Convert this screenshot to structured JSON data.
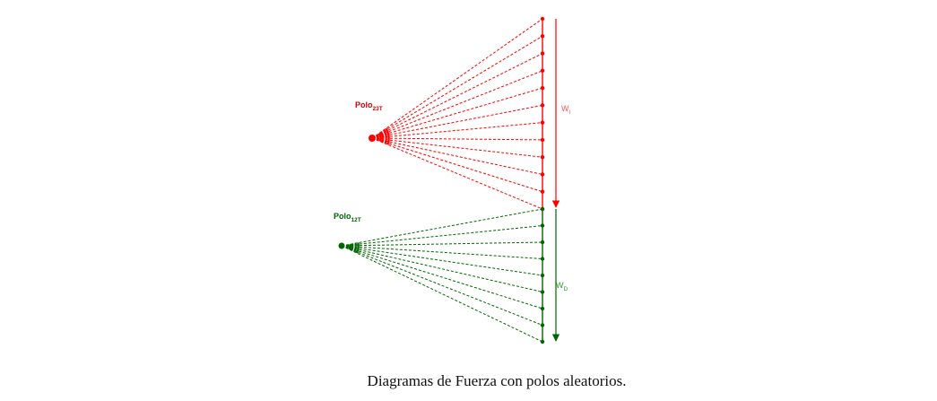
{
  "diagrams": [
    {
      "pole_label": {
        "main": "Polo",
        "sub": "23T"
      },
      "force_label": {
        "main": "W",
        "sub": "I"
      },
      "color": "#ff0000",
      "ray_count": 11
    },
    {
      "pole_label": {
        "main": "Polo",
        "sub": "12T"
      },
      "force_label": {
        "main": "W",
        "sub": "D"
      },
      "color": "#006600",
      "ray_count": 8
    }
  ],
  "caption": "Diagramas de Fuerza con polos aleatorios."
}
